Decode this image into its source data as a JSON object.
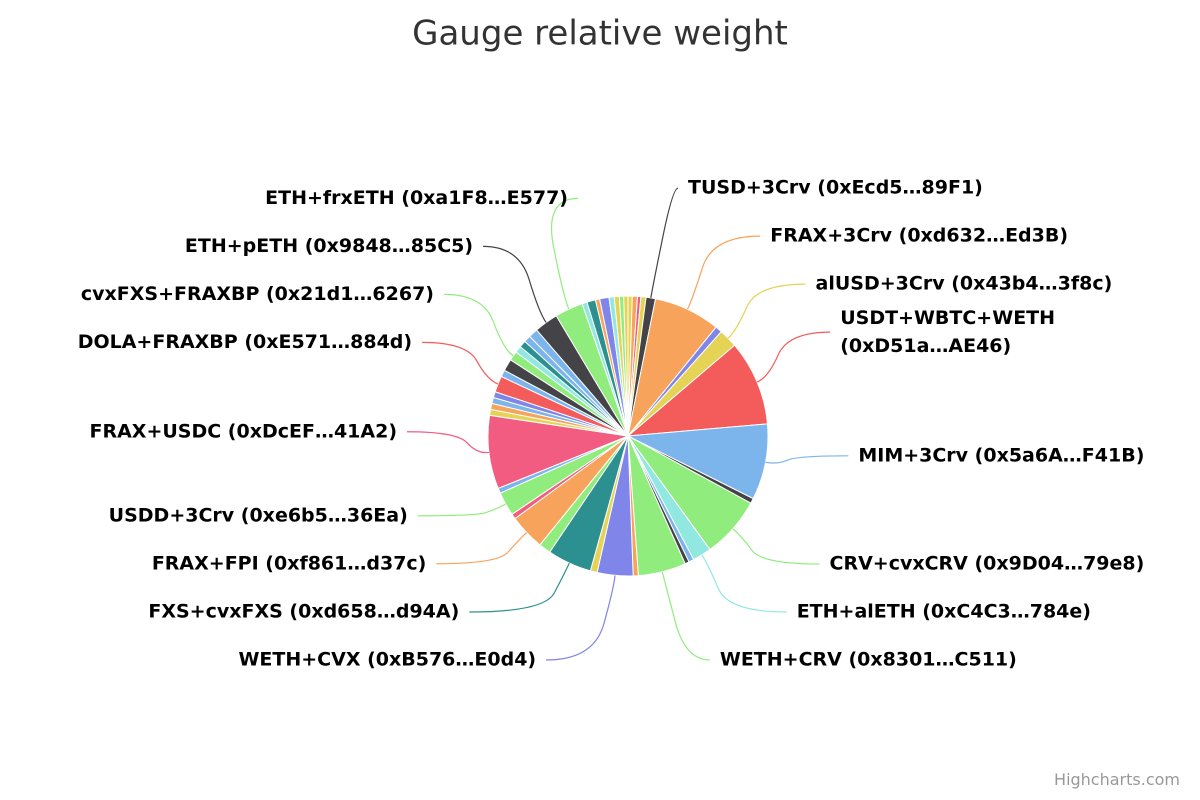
{
  "chart_data": {
    "type": "pie",
    "title": "Gauge relative weight",
    "credits": "Highcharts.com",
    "categories": [
      null,
      null,
      null,
      null,
      "TUSD+3Crv (0xEcd5…89F1)",
      "FRAX+3Crv (0xd632…Ed3B)",
      null,
      "alUSD+3Crv (0x43b4…3f8c)",
      "USDT+WBTC+WETH (0xD51a…AE46)",
      "MIM+3Crv (0x5a6A…F41B)",
      null,
      "CRV+cvxCRV (0x9D04…79e8)",
      "ETH+alETH (0xC4C3…784e)",
      null,
      null,
      "WETH+CRV (0x8301…C511)",
      null,
      "WETH+CVX (0xB576…E0d4)",
      null,
      "FXS+cvxFXS (0xd658…d94A)",
      null,
      "FRAX+FPI (0xf861…d37c)",
      null,
      "USDD+3Crv (0xe6b5…36Ea)",
      null,
      "FRAX+USDC (0xDcEF…41A2)",
      null,
      null,
      null,
      null,
      "DOLA+FRAXBP (0xE571…884d)",
      null,
      null,
      "cvxFXS+FRAXBP (0x21d1…6267)",
      null,
      null,
      null,
      null,
      "ETH+pETH (0x9848…85C5)",
      "ETH+frxETH (0xa1F8…E577)",
      null,
      null,
      null,
      null,
      null,
      null,
      null,
      null
    ],
    "values": [
      0.5,
      0.6,
      0.4,
      0.6,
      1.1,
      7.8,
      0.8,
      2.2,
      10,
      8.9,
      0.6,
      7.2,
      2.2,
      0.6,
      0.5,
      5.6,
      0.6,
      4.2,
      0.8,
      5.2,
      1.4,
      4.2,
      0.6,
      2.8,
      0.6,
      8.6,
      0.7,
      0.7,
      0.7,
      0.7,
      1.9,
      0.8,
      1.4,
      1.1,
      0.8,
      0.8,
      0.8,
      1.1,
      2.8,
      3.3,
      0.6,
      1.0,
      0.5,
      1.1,
      0.6,
      0.6,
      0.5,
      0.5
    ],
    "colors": [
      "#e4d354",
      "#f7a35c",
      "#f15c80",
      "#e4d354",
      "#434348",
      "#f7a35c",
      "#8085e9",
      "#e4d354",
      "#f45b5b",
      "#7cb5ec",
      "#434348",
      "#90ed7d",
      "#91e8e1",
      "#7cb5ec",
      "#434348",
      "#90ed7d",
      "#f7a35c",
      "#8085e9",
      "#e4d354",
      "#2b908f",
      "#90ed7d",
      "#f7a35c",
      "#f15c80",
      "#90ed7d",
      "#7cb5ec",
      "#f15c80",
      "#e4d354",
      "#f7a35c",
      "#7cb5ec",
      "#8085e9",
      "#f45b5b",
      "#7cb5ec",
      "#434348",
      "#90ed7d",
      "#91e8e1",
      "#2b908f",
      "#7cb5ec",
      "#7cb5ec",
      "#434348",
      "#90ed7d",
      "#91e8e1",
      "#2b908f",
      "#f7a35c",
      "#8085e9",
      "#91e8e1",
      "#e4d354",
      "#90ed7d",
      "#e4d354"
    ]
  }
}
